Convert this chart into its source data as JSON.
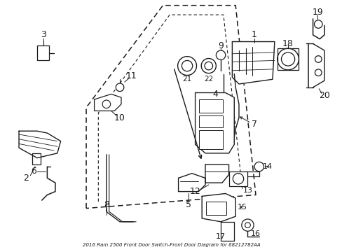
{
  "title": "2016 Ram 2500 Front Door Switch-Front Door Diagram for 68212782AA",
  "bg_color": "#ffffff",
  "line_color": "#1a1a1a",
  "fig_width": 4.89,
  "fig_height": 3.6,
  "dpi": 100
}
